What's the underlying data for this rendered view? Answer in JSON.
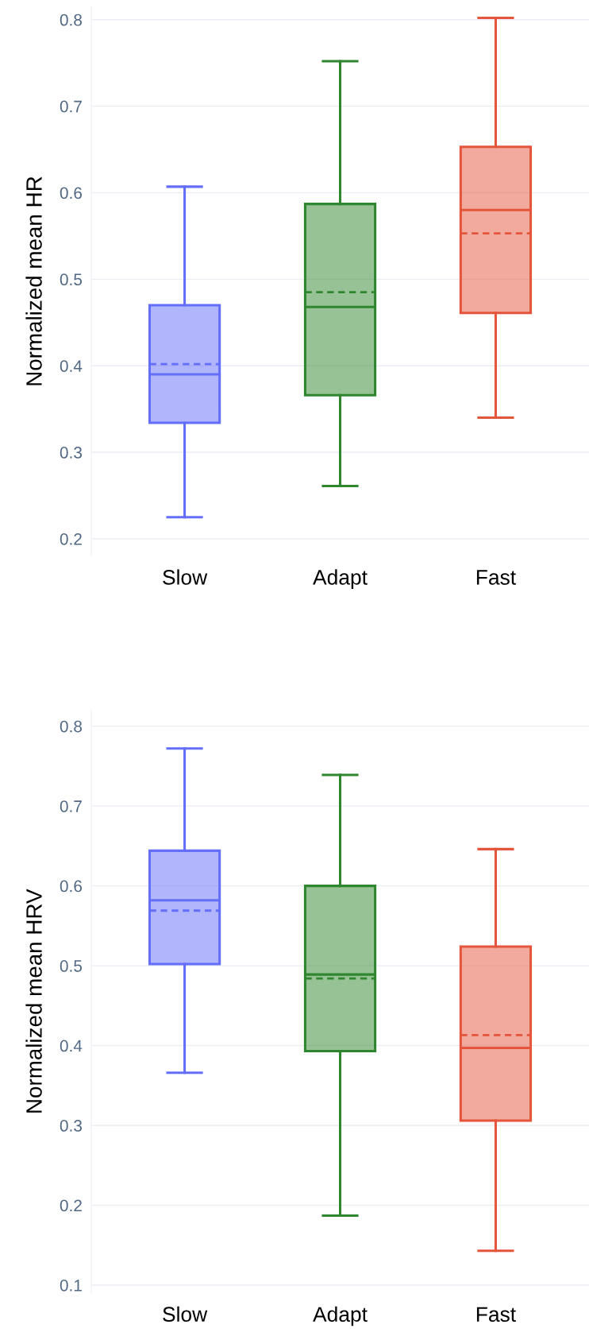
{
  "chart_data": [
    {
      "type": "box",
      "ylabel": "Normalized mean HR",
      "categories": [
        "Slow",
        "Adapt",
        "Fast"
      ],
      "colors": [
        "#636efa",
        "#2e862e",
        "#e4553b"
      ],
      "grid": "y",
      "ylim": [
        0.18,
        0.815
      ],
      "yticks": [
        0.2,
        0.3,
        0.4,
        0.5,
        0.6,
        0.7,
        0.8
      ],
      "boxes": [
        {
          "low": 0.225,
          "q1": 0.334,
          "median": 0.39,
          "q3": 0.47,
          "high": 0.607,
          "mean": 0.402
        },
        {
          "low": 0.261,
          "q1": 0.366,
          "median": 0.468,
          "q3": 0.587,
          "high": 0.752,
          "mean": 0.485
        },
        {
          "low": 0.34,
          "q1": 0.461,
          "median": 0.58,
          "q3": 0.653,
          "high": 0.802,
          "mean": 0.553
        }
      ]
    },
    {
      "type": "box",
      "ylabel": "Normalized mean HRV",
      "categories": [
        "Slow",
        "Adapt",
        "Fast"
      ],
      "colors": [
        "#636efa",
        "#2e862e",
        "#e4553b"
      ],
      "grid": "y",
      "ylim": [
        0.09,
        0.82
      ],
      "yticks": [
        0.1,
        0.2,
        0.3,
        0.4,
        0.5,
        0.6,
        0.7,
        0.8
      ],
      "boxes": [
        {
          "low": 0.366,
          "q1": 0.502,
          "median": 0.582,
          "q3": 0.644,
          "high": 0.772,
          "mean": 0.569
        },
        {
          "low": 0.187,
          "q1": 0.393,
          "median": 0.489,
          "q3": 0.6,
          "high": 0.739,
          "mean": 0.484
        },
        {
          "low": 0.143,
          "q1": 0.306,
          "median": 0.397,
          "q3": 0.524,
          "high": 0.646,
          "mean": 0.413
        }
      ]
    }
  ]
}
